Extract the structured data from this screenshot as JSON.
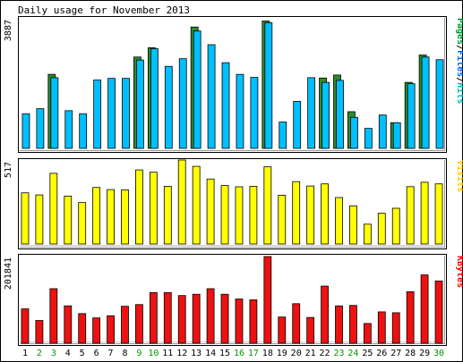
{
  "chart_data": {
    "type": "bar",
    "title": "Daily usage for November 2013",
    "categories": [
      "1",
      "2",
      "3",
      "4",
      "5",
      "6",
      "7",
      "8",
      "9",
      "10",
      "11",
      "12",
      "13",
      "14",
      "15",
      "16",
      "17",
      "18",
      "19",
      "20",
      "21",
      "22",
      "23",
      "24",
      "25",
      "26",
      "27",
      "28",
      "29",
      "30"
    ],
    "weekend_days": [
      "2",
      "3",
      "9",
      "10",
      "16",
      "17",
      "23",
      "24",
      "30"
    ],
    "panels": [
      {
        "name": "hits",
        "ymax_label": "3887",
        "ymax": 3887,
        "legend": [
          {
            "text": "Pages",
            "color": "#009933"
          },
          {
            "text": "/",
            "color": "#000000"
          },
          {
            "text": "Files",
            "color": "#0066ff"
          },
          {
            "text": "/",
            "color": "#000000"
          },
          {
            "text": "Hits",
            "color": "#00bbbb"
          }
        ],
        "series": [
          {
            "name": "Pages",
            "color": "#2e8b2e",
            "values": [
              0,
              0,
              2220,
              0,
              0,
              0,
              0,
              0,
              2740,
              3020,
              0,
              0,
              3640,
              0,
              0,
              0,
              0,
              3820,
              0,
              0,
              0,
              2110,
              2200,
              1100,
              0,
              0,
              770,
              1980,
              2800,
              0
            ]
          },
          {
            "name": "Hits",
            "color": "#00bfff",
            "values": [
              1040,
              1190,
              2120,
              1130,
              1040,
              2050,
              2100,
              2100,
              2650,
              2990,
              2460,
              2690,
              3520,
              3110,
              2570,
              2220,
              2130,
              3770,
              790,
              1410,
              2120,
              1980,
              2040,
              930,
              600,
              1000,
              770,
              1940,
              2740,
              2660
            ]
          }
        ]
      },
      {
        "name": "visits",
        "ymax_label": "517",
        "ymax": 517,
        "legend": [
          {
            "text": "Visits",
            "color": "#ffcc00"
          }
        ],
        "series": [
          {
            "name": "Visits",
            "color": "#ffff00",
            "values": [
              315,
              302,
              435,
              295,
              255,
              348,
              335,
              333,
              456,
              442,
              355,
              517,
              478,
              400,
              360,
              352,
              355,
              475,
              300,
              384,
              357,
              370,
              286,
              235,
              122,
              189,
              220,
              353,
              380,
              370
            ]
          }
        ]
      },
      {
        "name": "kbytes",
        "ymax_label": "201841",
        "ymax": 201841,
        "legend": [
          {
            "text": "KBytes",
            "color": "#ff0000"
          }
        ],
        "series": [
          {
            "name": "KBytes",
            "color": "#ee1111",
            "values": [
              80000,
              53000,
              127000,
              87000,
              69000,
              59000,
              64000,
              86000,
              90000,
              118000,
              118000,
              111000,
              114000,
              127000,
              114000,
              103000,
              101000,
              201841,
              61000,
              92000,
              60000,
              133000,
              87000,
              88000,
              46000,
              73000,
              71000,
              120000,
              159000,
              145000
            ]
          }
        ]
      }
    ]
  }
}
